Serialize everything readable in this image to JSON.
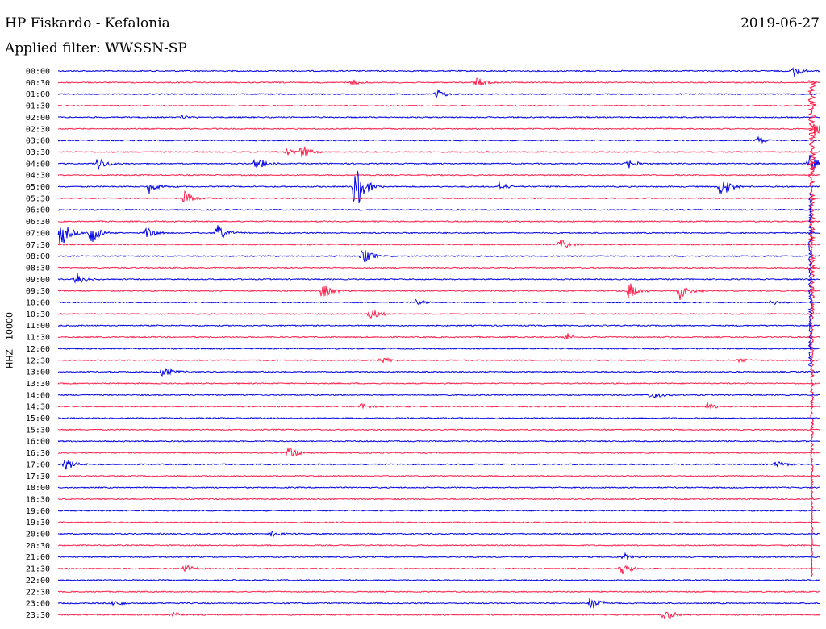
{
  "header": {
    "station": "HP Fiskardo - Kefalonia",
    "date": "2019-06-27",
    "filter": "Applied filter: WWSSN-SP"
  },
  "chart_data": {
    "type": "line",
    "title": "HP Fiskardo - Kefalonia",
    "ylabel": "HHZ - 10000",
    "trace_colors": [
      "#0000e6",
      "#ff1f4b"
    ],
    "rows": [
      "00:00",
      "00:30",
      "01:00",
      "01:30",
      "02:00",
      "02:30",
      "03:00",
      "03:30",
      "04:00",
      "04:30",
      "05:00",
      "05:30",
      "06:00",
      "06:30",
      "07:00",
      "07:30",
      "08:00",
      "08:30",
      "09:00",
      "09:30",
      "10:00",
      "10:30",
      "11:00",
      "11:30",
      "12:00",
      "12:30",
      "13:00",
      "13:30",
      "14:00",
      "14:30",
      "15:00",
      "15:30",
      "16:00",
      "16:30",
      "17:00",
      "17:30",
      "18:00",
      "18:30",
      "19:00",
      "19:30",
      "20:00",
      "20:30",
      "21:00",
      "21:30",
      "22:00",
      "22:30",
      "23:00",
      "23:30"
    ],
    "x_range_minutes": [
      0,
      30
    ],
    "events": [
      {
        "row": 0,
        "minute": 29.0,
        "amp": 0.9
      },
      {
        "row": 1,
        "minute": 11.6,
        "amp": 0.5
      },
      {
        "row": 1,
        "minute": 16.5,
        "amp": 0.8
      },
      {
        "row": 2,
        "minute": 14.9,
        "amp": 0.8
      },
      {
        "row": 4,
        "minute": 4.9,
        "amp": 0.3
      },
      {
        "row": 5,
        "minute": 29.8,
        "amp": 1.2
      },
      {
        "row": 6,
        "minute": 27.6,
        "amp": 0.5
      },
      {
        "row": 7,
        "minute": 9.0,
        "amp": 0.6
      },
      {
        "row": 7,
        "minute": 9.6,
        "amp": 1.0
      },
      {
        "row": 8,
        "minute": 1.6,
        "amp": 1.0
      },
      {
        "row": 8,
        "minute": 7.8,
        "amp": 1.0
      },
      {
        "row": 8,
        "minute": 22.4,
        "amp": 0.9
      },
      {
        "row": 8,
        "minute": 29.6,
        "amp": 1.4
      },
      {
        "row": 10,
        "minute": 3.6,
        "amp": 1.0
      },
      {
        "row": 10,
        "minute": 11.7,
        "amp": 4.0
      },
      {
        "row": 10,
        "minute": 17.4,
        "amp": 0.6
      },
      {
        "row": 10,
        "minute": 26.1,
        "amp": 1.8
      },
      {
        "row": 11,
        "minute": 5.0,
        "amp": 1.0
      },
      {
        "row": 14,
        "minute": 0.1,
        "amp": 2.0
      },
      {
        "row": 14,
        "minute": 1.3,
        "amp": 1.6
      },
      {
        "row": 14,
        "minute": 3.5,
        "amp": 0.8
      },
      {
        "row": 14,
        "minute": 6.3,
        "amp": 1.2
      },
      {
        "row": 15,
        "minute": 19.8,
        "amp": 0.9
      },
      {
        "row": 16,
        "minute": 12.0,
        "amp": 1.2
      },
      {
        "row": 18,
        "minute": 0.7,
        "amp": 1.2
      },
      {
        "row": 19,
        "minute": 10.4,
        "amp": 1.2
      },
      {
        "row": 19,
        "minute": 22.5,
        "amp": 1.3
      },
      {
        "row": 19,
        "minute": 24.5,
        "amp": 1.3
      },
      {
        "row": 20,
        "minute": 14.1,
        "amp": 0.5
      },
      {
        "row": 20,
        "minute": 28.1,
        "amp": 0.4
      },
      {
        "row": 21,
        "minute": 12.3,
        "amp": 0.9
      },
      {
        "row": 23,
        "minute": 20.0,
        "amp": 0.6
      },
      {
        "row": 25,
        "minute": 12.7,
        "amp": 0.5
      },
      {
        "row": 25,
        "minute": 26.8,
        "amp": 0.4
      },
      {
        "row": 26,
        "minute": 4.1,
        "amp": 0.9
      },
      {
        "row": 28,
        "minute": 23.4,
        "amp": 0.8
      },
      {
        "row": 29,
        "minute": 11.9,
        "amp": 0.5
      },
      {
        "row": 29,
        "minute": 25.6,
        "amp": 0.6
      },
      {
        "row": 33,
        "minute": 9.1,
        "amp": 1.0
      },
      {
        "row": 34,
        "minute": 0.3,
        "amp": 0.9
      },
      {
        "row": 34,
        "minute": 28.3,
        "amp": 0.5
      },
      {
        "row": 40,
        "minute": 8.4,
        "amp": 0.5
      },
      {
        "row": 42,
        "minute": 22.3,
        "amp": 0.5
      },
      {
        "row": 43,
        "minute": 5.0,
        "amp": 0.6
      },
      {
        "row": 43,
        "minute": 22.2,
        "amp": 1.0
      },
      {
        "row": 46,
        "minute": 21.0,
        "amp": 1.1
      },
      {
        "row": 46,
        "minute": 2.2,
        "amp": 0.6
      },
      {
        "row": 47,
        "minute": 4.4,
        "amp": 0.6
      },
      {
        "row": 47,
        "minute": 23.9,
        "amp": 0.9
      }
    ],
    "large_event": {
      "start_row": 5,
      "end_row": 43,
      "minute": 29.7
    },
    "grid": false
  }
}
